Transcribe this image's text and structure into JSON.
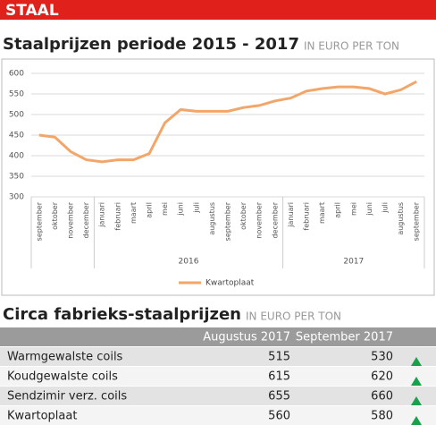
{
  "header": {
    "label": "STAAL"
  },
  "chart_data": {
    "type": "line",
    "title": "Staalprijzen periode 2015 - 2017",
    "subtitle": "IN EURO PER TON",
    "categories": [
      "september",
      "oktober",
      "november",
      "december",
      "januari",
      "februari",
      "maart",
      "april",
      "mei",
      "juni",
      "juli",
      "augustus",
      "september",
      "oktober",
      "november",
      "december",
      "januari",
      "februari",
      "maart",
      "april",
      "mei",
      "juni",
      "juli",
      "augustus",
      "september"
    ],
    "group_labels": [
      null,
      "2016",
      "2017"
    ],
    "group_sizes": [
      4,
      12,
      9
    ],
    "series": [
      {
        "name": "Kwartoplaat",
        "color": "#f2a66a",
        "values": [
          450,
          445,
          410,
          390,
          385,
          390,
          390,
          405,
          480,
          512,
          508,
          508,
          508,
          517,
          522,
          533,
          540,
          557,
          563,
          567,
          567,
          563,
          550,
          560,
          580
        ]
      }
    ],
    "ylim": [
      300,
      600
    ],
    "yticks": [
      300,
      350,
      400,
      450,
      500,
      550,
      600
    ],
    "grid": true,
    "legend": "bottom"
  },
  "table": {
    "title": "Circa fabrieks-staalprijzen",
    "subtitle": "IN EURO PER TON",
    "columns": [
      "Augustus 2017",
      "September 2017"
    ],
    "rows": [
      [
        "Warmgewalste coils",
        515,
        530
      ],
      [
        "Koudgewalste coils",
        615,
        620
      ],
      [
        "Sendzimir verz. coils",
        655,
        660
      ],
      [
        "Kwartoplaat",
        560,
        580
      ]
    ]
  }
}
